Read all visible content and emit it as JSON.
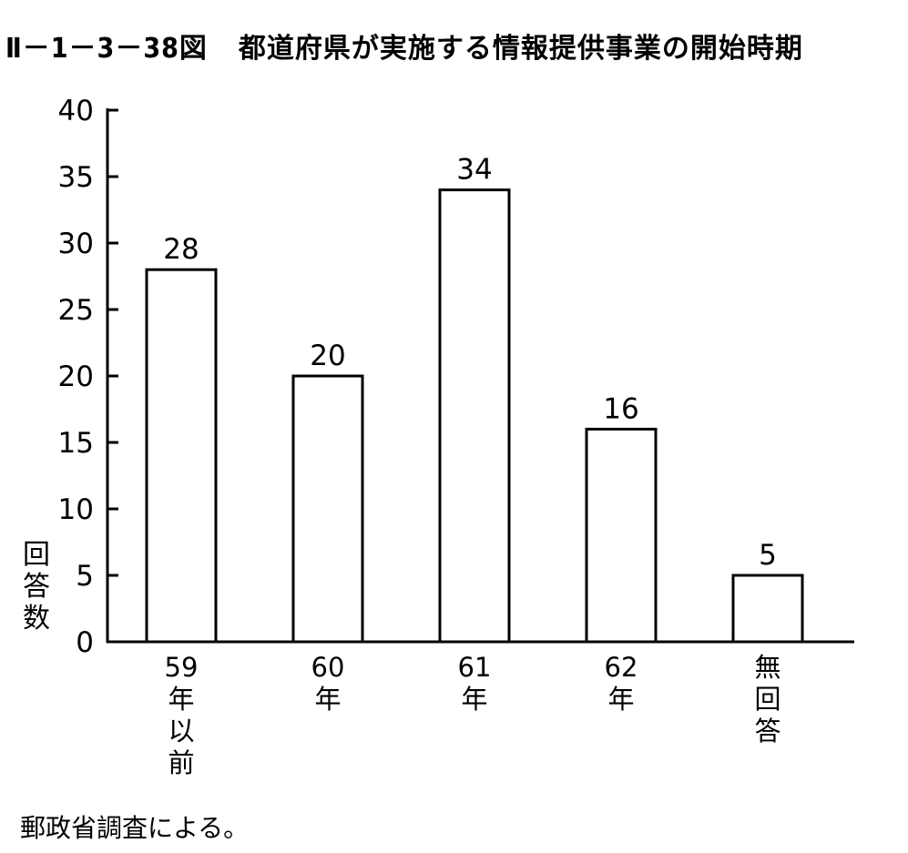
{
  "figure": {
    "number": "Ⅱ－1－3－38図",
    "title": "都道府県が実施する情報提供事業の開始時期",
    "source": "郵政省調査による。"
  },
  "chart_data": {
    "type": "bar",
    "title": "都道府県が実施する情報提供事業の開始時期",
    "xlabel": "",
    "ylabel": "回答数",
    "ylim": [
      0,
      40
    ],
    "yticks": [
      0,
      5,
      10,
      15,
      20,
      25,
      30,
      35,
      40
    ],
    "categories": [
      "59年以前",
      "60年",
      "61年",
      "62年",
      "無回答"
    ],
    "values": [
      28,
      20,
      34,
      16,
      5
    ],
    "data_labels": [
      "28",
      "20",
      "34",
      "16",
      "5"
    ],
    "bar_fill": "#ffffff",
    "bar_stroke": "#000000",
    "grid": false,
    "legend": "none"
  }
}
